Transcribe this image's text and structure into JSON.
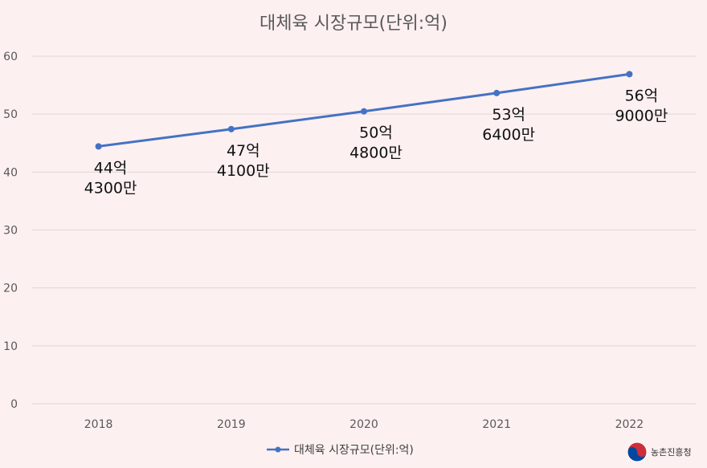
{
  "chart_data": {
    "type": "line",
    "title": "대체육 시장규모(단위:억)",
    "categories": [
      "2018",
      "2019",
      "2020",
      "2021",
      "2022"
    ],
    "series": [
      {
        "name": "대체육 시장규모(단위:억)",
        "values": [
          44.43,
          47.41,
          50.48,
          53.64,
          56.9
        ],
        "color": "#4472c4"
      }
    ],
    "data_labels": [
      [
        "44억",
        "4300만"
      ],
      [
        "47억",
        "4100만"
      ],
      [
        "50억",
        "4800만"
      ],
      [
        "53억",
        "6400만"
      ],
      [
        "56억",
        "9000만"
      ]
    ],
    "ylim": [
      0,
      60
    ],
    "yticks": [
      0,
      10,
      20,
      30,
      40,
      50,
      60
    ],
    "grid": true,
    "legend_position": "bottom",
    "background_color": "#fdf0f0",
    "gridline_color": "#e0d6d6"
  },
  "logo": {
    "text": "농촌진흥청",
    "icon": "taegeuk-icon",
    "colors": {
      "red": "#cd2e3a",
      "blue": "#0047a0"
    }
  }
}
